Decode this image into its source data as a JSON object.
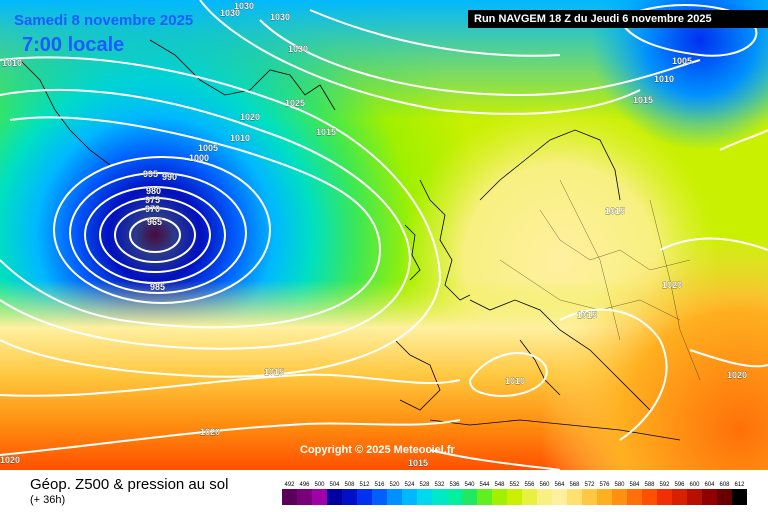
{
  "header": {
    "date": "Samedi 8 novembre 2025",
    "time": "7:00 locale",
    "run": "Run NAVGEM 18 Z du Jeudi 6 novembre 2025"
  },
  "copyright": "Copyright © 2025 Meteociel.fr",
  "legend": {
    "title": "Géop. Z500 & pression au sol",
    "subtitle": "(+ 36h)",
    "scale_values": [
      "492",
      "496",
      "500",
      "504",
      "508",
      "512",
      "516",
      "520",
      "524",
      "528",
      "532",
      "536",
      "540",
      "544",
      "548",
      "552",
      "556",
      "560",
      "564",
      "568",
      "572",
      "576",
      "580",
      "584",
      "588",
      "592",
      "596",
      "600",
      "604",
      "608",
      "612"
    ],
    "scale_colors": [
      "#5a005a",
      "#78007a",
      "#a000a8",
      "#0000a0",
      "#0010c8",
      "#0030f0",
      "#0060ff",
      "#0090ff",
      "#00b8ff",
      "#00d8f0",
      "#00e8c8",
      "#00f0a0",
      "#20e860",
      "#60f020",
      "#a0f000",
      "#c8f000",
      "#e8f040",
      "#f8f080",
      "#fff0a0",
      "#ffe070",
      "#ffc840",
      "#ffb020",
      "#ff9010",
      "#ff7008",
      "#ff5000",
      "#f03000",
      "#d82000",
      "#b81000",
      "#900000",
      "#680000",
      "#000000"
    ]
  },
  "isobar_labels": [
    {
      "text": "1030",
      "id": "a"
    },
    {
      "text": "1030",
      "id": "b"
    },
    {
      "text": "1030",
      "id": "c"
    },
    {
      "text": "1030",
      "id": "d"
    },
    {
      "text": "1025",
      "id": "e"
    },
    {
      "text": "1020",
      "id": "f"
    },
    {
      "text": "1015",
      "id": "g"
    },
    {
      "text": "1010",
      "id": "h"
    },
    {
      "text": "1005",
      "id": "i"
    },
    {
      "text": "1000",
      "id": "j"
    },
    {
      "text": "995",
      "id": "k"
    },
    {
      "text": "990",
      "id": "l"
    },
    {
      "text": "980",
      "id": "m"
    },
    {
      "text": "975",
      "id": "n"
    },
    {
      "text": "970",
      "id": "o"
    },
    {
      "text": "965",
      "id": "p"
    },
    {
      "text": "985",
      "id": "q"
    },
    {
      "text": "1010",
      "id": "r"
    },
    {
      "text": "1005",
      "id": "s"
    },
    {
      "text": "1010",
      "id": "t"
    },
    {
      "text": "1015",
      "id": "u"
    },
    {
      "text": "1015",
      "id": "v"
    },
    {
      "text": "1020",
      "id": "w"
    },
    {
      "text": "1015",
      "id": "x"
    },
    {
      "text": "1010",
      "id": "y"
    },
    {
      "text": "1020",
      "id": "z"
    },
    {
      "text": "1015",
      "id": "aa"
    },
    {
      "text": "1020",
      "id": "ab"
    },
    {
      "text": "1020",
      "id": "ac"
    },
    {
      "text": "1015",
      "id": "ad"
    }
  ]
}
